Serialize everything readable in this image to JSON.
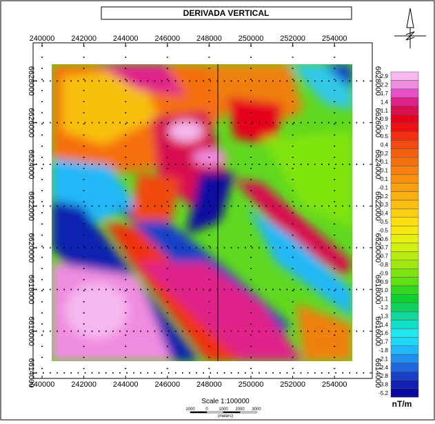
{
  "map": {
    "title": "DERIVADA VERTICAL",
    "x_ticks": [
      "240000",
      "242000",
      "244000",
      "246000",
      "248000",
      "250000",
      "252000",
      "254000"
    ],
    "y_ticks": [
      "6614000",
      "6616000",
      "6618000",
      "6620000",
      "6622000",
      "6624000",
      "6626000",
      "6628000"
    ],
    "legend": {
      "unit": "nT/m",
      "entries": [
        {
          "label": "2.9",
          "color": "#f6b8f0"
        },
        {
          "label": "2.2",
          "color": "#f08ce0"
        },
        {
          "label": "1.7",
          "color": "#e64fc8"
        },
        {
          "label": "1.4",
          "color": "#e0208a"
        },
        {
          "label": "1.1",
          "color": "#d81050"
        },
        {
          "label": "0.9",
          "color": "#e6001e"
        },
        {
          "label": "0.7",
          "color": "#ee1010"
        },
        {
          "label": "0.5",
          "color": "#f03010"
        },
        {
          "label": "0.4",
          "color": "#f24a10"
        },
        {
          "label": "0.2",
          "color": "#f46010"
        },
        {
          "label": "0.1",
          "color": "#f57010"
        },
        {
          "label": "0.1",
          "color": "#f78010"
        },
        {
          "label": "-0.1",
          "color": "#f89010"
        },
        {
          "label": "-0.1",
          "color": "#f9a010"
        },
        {
          "label": "-0.2",
          "color": "#faae10"
        },
        {
          "label": "-0.3",
          "color": "#fbbe10"
        },
        {
          "label": "-0.4",
          "color": "#fcce10"
        },
        {
          "label": "-0.5",
          "color": "#fde010"
        },
        {
          "label": "-0.5",
          "color": "#f6e810"
        },
        {
          "label": "-0.6",
          "color": "#e8f010"
        },
        {
          "label": "-0.7",
          "color": "#d0f010"
        },
        {
          "label": "-0.7",
          "color": "#b8ec10"
        },
        {
          "label": "-0.8",
          "color": "#a0e810"
        },
        {
          "label": "-0.9",
          "color": "#80e410"
        },
        {
          "label": "-0.9",
          "color": "#60e010"
        },
        {
          "label": "-1.0",
          "color": "#30d820"
        },
        {
          "label": "-1.1",
          "color": "#10d030"
        },
        {
          "label": "-1.2",
          "color": "#10d060"
        },
        {
          "label": "-1.3",
          "color": "#10d898"
        },
        {
          "label": "-1.4",
          "color": "#10e0c8"
        },
        {
          "label": "-1.6",
          "color": "#20e8f0"
        },
        {
          "label": "-1.7",
          "color": "#20d8f8"
        },
        {
          "label": "-1.8",
          "color": "#20b8f8"
        },
        {
          "label": "-2.1",
          "color": "#2090f0"
        },
        {
          "label": "-2.4",
          "color": "#2068e0"
        },
        {
          "label": "-2.8",
          "color": "#1840c8"
        },
        {
          "label": "-3.8",
          "color": "#1020b0"
        },
        {
          "label": "-5.2",
          "color": "#0808a0"
        }
      ]
    },
    "scale": {
      "text": "Scale 1:100000",
      "bar_labels": [
        "1000",
        "0",
        "1000",
        "2000",
        "3000"
      ],
      "units": "(meters)"
    }
  }
}
